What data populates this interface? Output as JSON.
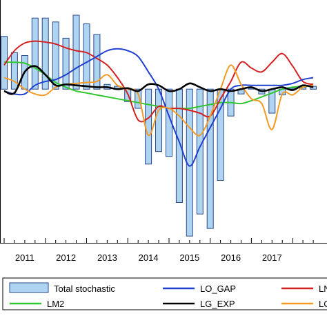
{
  "chart_data": {
    "type": "bar+line",
    "title": "",
    "xlabel": "",
    "ylabel": "",
    "x_tick_labels": [
      "2011",
      "2012",
      "2013",
      "2014",
      "2015",
      "2016",
      "2017"
    ],
    "x_range": [
      2011.0,
      2018.7
    ],
    "y_range": [
      -1.6,
      1.0
    ],
    "grid": false,
    "legend_position": "bottom",
    "bar_series": {
      "name": "Total stochastic",
      "color": "#aed4f2",
      "x": [
        2011.0,
        2011.25,
        2011.5,
        2011.75,
        2012.0,
        2012.25,
        2012.5,
        2012.75,
        2013.0,
        2013.25,
        2013.5,
        2013.75,
        2014.0,
        2014.25,
        2014.5,
        2014.75,
        2015.0,
        2015.25,
        2015.5,
        2015.75,
        2016.0,
        2016.25,
        2016.5,
        2016.75,
        2017.0,
        2017.25,
        2017.5,
        2017.75,
        2018.0,
        2018.25,
        2018.5
      ],
      "values": [
        0.55,
        0.38,
        0.35,
        0.74,
        0.74,
        0.7,
        0.53,
        0.77,
        0.68,
        0.57,
        0.05,
        0.03,
        -0.13,
        -0.2,
        -0.78,
        -0.65,
        -0.7,
        -1.18,
        -1.53,
        -1.3,
        -1.45,
        -0.95,
        -0.28,
        -0.05,
        0.01,
        -0.05,
        -0.25,
        -0.06,
        0.01,
        0.02,
        0.03
      ]
    },
    "series": [
      {
        "name": "LO_GAP",
        "color": "#1f3fd1",
        "x": [
          2011.0,
          2011.25,
          2011.5,
          2011.75,
          2012.0,
          2012.25,
          2012.5,
          2012.75,
          2013.0,
          2013.25,
          2013.5,
          2013.75,
          2014.0,
          2014.25,
          2014.5,
          2014.75,
          2015.0,
          2015.25,
          2015.5,
          2015.75,
          2016.0,
          2016.25,
          2016.5,
          2016.75,
          2017.0,
          2017.25,
          2017.5,
          2017.75,
          2018.0,
          2018.25,
          2018.5
        ],
        "values": [
          -0.02,
          -0.05,
          -0.05,
          0.04,
          0.08,
          0.1,
          0.15,
          0.22,
          0.28,
          0.34,
          0.4,
          0.42,
          0.4,
          0.34,
          0.18,
          0.0,
          -0.28,
          -0.55,
          -0.8,
          -0.6,
          -0.4,
          -0.2,
          0.0,
          0.04,
          0.04,
          0.04,
          0.04,
          0.04,
          0.06,
          0.1,
          0.12
        ]
      },
      {
        "name": "LNI",
        "color": "#d42020",
        "x": [
          2011.0,
          2011.25,
          2011.5,
          2011.75,
          2012.0,
          2012.25,
          2012.5,
          2012.75,
          2013.0,
          2013.25,
          2013.5,
          2013.75,
          2014.0,
          2014.25,
          2014.5,
          2014.75,
          2015.0,
          2015.25,
          2015.5,
          2015.75,
          2016.0,
          2016.25,
          2016.5,
          2016.75,
          2017.0,
          2017.25,
          2017.5,
          2017.75,
          2018.0,
          2018.25,
          2018.5
        ],
        "values": [
          0.25,
          0.4,
          0.48,
          0.5,
          0.49,
          0.47,
          0.43,
          0.4,
          0.38,
          0.32,
          0.25,
          0.12,
          -0.05,
          -0.32,
          -0.3,
          -0.18,
          -0.2,
          -0.2,
          -0.22,
          -0.25,
          -0.28,
          -0.1,
          0.08,
          0.28,
          0.22,
          0.18,
          0.28,
          0.37,
          0.24,
          0.08,
          0.05
        ]
      },
      {
        "name": "LM2",
        "color": "#2fc62f",
        "x": [
          2011.0,
          2011.25,
          2011.5,
          2011.75,
          2012.0,
          2012.25,
          2012.5,
          2012.75,
          2013.0,
          2013.25,
          2013.5,
          2013.75,
          2014.0,
          2014.25,
          2014.5,
          2014.75,
          2015.0,
          2015.25,
          2015.5,
          2015.75,
          2016.0,
          2016.25,
          2016.5,
          2016.75,
          2017.0,
          2017.25,
          2017.5,
          2017.75,
          2018.0,
          2018.25,
          2018.5
        ],
        "values": [
          0.28,
          0.28,
          0.27,
          0.22,
          0.15,
          0.07,
          0.02,
          -0.02,
          -0.04,
          -0.06,
          -0.08,
          -0.1,
          -0.12,
          -0.14,
          -0.16,
          -0.18,
          -0.2,
          -0.2,
          -0.2,
          -0.18,
          -0.16,
          -0.14,
          -0.14,
          -0.15,
          -0.12,
          -0.08,
          -0.04,
          0.0,
          0.02,
          0.03,
          0.03
        ]
      },
      {
        "name": "LG_EXP",
        "color": "#000000",
        "x": [
          2011.0,
          2011.25,
          2011.5,
          2011.75,
          2012.0,
          2012.25,
          2012.5,
          2012.75,
          2013.0,
          2013.25,
          2013.5,
          2013.75,
          2014.0,
          2014.25,
          2014.5,
          2014.75,
          2015.0,
          2015.25,
          2015.5,
          2015.75,
          2016.0,
          2016.25,
          2016.5,
          2016.75,
          2017.0,
          2017.25,
          2017.5,
          2017.75,
          2018.0,
          2018.25,
          2018.5
        ],
        "values": [
          -0.02,
          -0.04,
          0.18,
          0.24,
          0.15,
          0.04,
          0.05,
          0.04,
          0.03,
          0.02,
          0.02,
          0.0,
          0.01,
          -0.02,
          0.05,
          0.04,
          -0.02,
          0.0,
          0.06,
          0.02,
          -0.02,
          0.0,
          -0.02,
          0.0,
          0.02,
          -0.02,
          0.0,
          0.02,
          -0.01,
          0.04,
          0.02
        ]
      },
      {
        "name": "LCPI",
        "color": "#f39a23",
        "x": [
          2011.0,
          2011.25,
          2011.5,
          2011.75,
          2012.0,
          2012.25,
          2012.5,
          2012.75,
          2013.0,
          2013.25,
          2013.5,
          2013.75,
          2014.0,
          2014.25,
          2014.5,
          2014.75,
          2015.0,
          2015.25,
          2015.5,
          2015.75,
          2016.0,
          2016.25,
          2016.5,
          2016.75,
          2017.0,
          2017.25,
          2017.5,
          2017.75,
          2018.0,
          2018.25,
          2018.5
        ],
        "values": [
          0.12,
          0.08,
          0.0,
          -0.05,
          -0.06,
          0.02,
          0.05,
          0.06,
          0.07,
          0.08,
          0.15,
          0.04,
          0.0,
          -0.05,
          -0.48,
          -0.22,
          -0.2,
          -0.28,
          -0.4,
          -0.48,
          -0.28,
          0.0,
          0.25,
          0.05,
          -0.1,
          -0.15,
          -0.42,
          -0.05,
          -0.06,
          0.02,
          0.04
        ]
      }
    ],
    "legend": [
      {
        "label": "Total stochastic",
        "kind": "bar",
        "color": "#aed4f2"
      },
      {
        "label": "LO_GAP",
        "kind": "line",
        "color": "#1f3fd1"
      },
      {
        "label": "LNI",
        "kind": "line",
        "color": "#d42020"
      },
      {
        "label": "LM2",
        "kind": "line",
        "color": "#2fc62f"
      },
      {
        "label": "LG_EXP",
        "kind": "line",
        "color": "#000000"
      },
      {
        "label": "LCPI",
        "kind": "line",
        "color": "#f39a23"
      }
    ]
  }
}
